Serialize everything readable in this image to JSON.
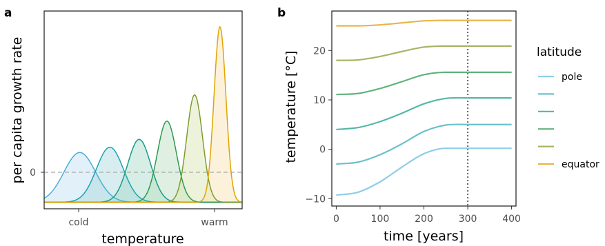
{
  "colors": {
    "lat": [
      "#8FCDE8",
      "#6CC0CB",
      "#55B7A8",
      "#62B27F",
      "#A5B565",
      "#E8B54A"
    ],
    "gauss_stroke": [
      "#4BAED6",
      "#1BA3B4",
      "#1A9B86",
      "#2E9A50",
      "#7C9D2E",
      "#E0A400"
    ],
    "gauss_fill": [
      "#BFDDF4",
      "#A9D8DC",
      "#A4D9C8",
      "#B8DDBE",
      "#D6E4B0",
      "#F8E2B2"
    ]
  },
  "panel_a": {
    "label": "a",
    "ylabel": "per capita growth rate",
    "xlabel": "temperature",
    "ytick_zero": "0",
    "xtick_cold": "cold",
    "xtick_warm": "warm"
  },
  "panel_b": {
    "label": "b",
    "ylabel": "temperature [°C]",
    "xlabel": "time [years]"
  },
  "legend": {
    "title": "latitude",
    "items": [
      "pole",
      "",
      "",
      "",
      "",
      "equator"
    ]
  },
  "chart_data": [
    {
      "type": "area",
      "title": "",
      "xlabel": "temperature",
      "ylabel": "per capita growth rate",
      "x_tick_labels": [
        "cold",
        "warm"
      ],
      "y_tick_labels": [
        "0"
      ],
      "reference_line": {
        "y": 0,
        "style": "dashed"
      },
      "curves": [
        {
          "peak_x": 0.0,
          "peak_y": 0.1
        },
        {
          "peak_x": 0.38,
          "peak_y": 0.12
        },
        {
          "peak_x": 0.75,
          "peak_y": 0.15
        },
        {
          "peak_x": 1.1,
          "peak_y": 0.22
        },
        {
          "peak_x": 1.45,
          "peak_y": 0.32
        },
        {
          "peak_x": 1.77,
          "peak_y": 0.58
        }
      ],
      "floor_y": -0.09
    },
    {
      "type": "line",
      "title": "",
      "xlabel": "time [years]",
      "ylabel": "temperature [°C]",
      "xlim": [
        -10,
        410
      ],
      "ylim": [
        -11.5,
        28
      ],
      "x_ticks": [
        0,
        100,
        200,
        300,
        400
      ],
      "y_ticks": [
        -10,
        0,
        10,
        20
      ],
      "vline": {
        "x": 300,
        "style": "dotted"
      },
      "x": [
        0,
        50,
        100,
        150,
        200,
        250,
        300,
        350,
        400
      ],
      "series": [
        {
          "name": "pole",
          "values": [
            -9.3,
            -8.7,
            -6.6,
            -3.6,
            -0.9,
            0.2,
            0.2,
            0.2,
            0.2
          ]
        },
        {
          "values": [
            -3.0,
            -2.6,
            -1.1,
            1.1,
            3.6,
            4.9,
            5.0,
            5.0,
            5.0
          ]
        },
        {
          "values": [
            4.0,
            4.4,
            5.6,
            7.3,
            9.2,
            10.3,
            10.4,
            10.4,
            10.4
          ]
        },
        {
          "values": [
            11.1,
            11.3,
            12.3,
            13.7,
            15.1,
            15.6,
            15.6,
            15.6,
            15.6
          ]
        },
        {
          "values": [
            18.0,
            18.1,
            18.8,
            19.8,
            20.7,
            20.9,
            20.9,
            20.9,
            20.9
          ]
        },
        {
          "name": "equator",
          "values": [
            25.0,
            25.0,
            25.2,
            25.6,
            26.0,
            26.1,
            26.1,
            26.1,
            26.1
          ]
        }
      ],
      "legend_position": "right"
    }
  ]
}
